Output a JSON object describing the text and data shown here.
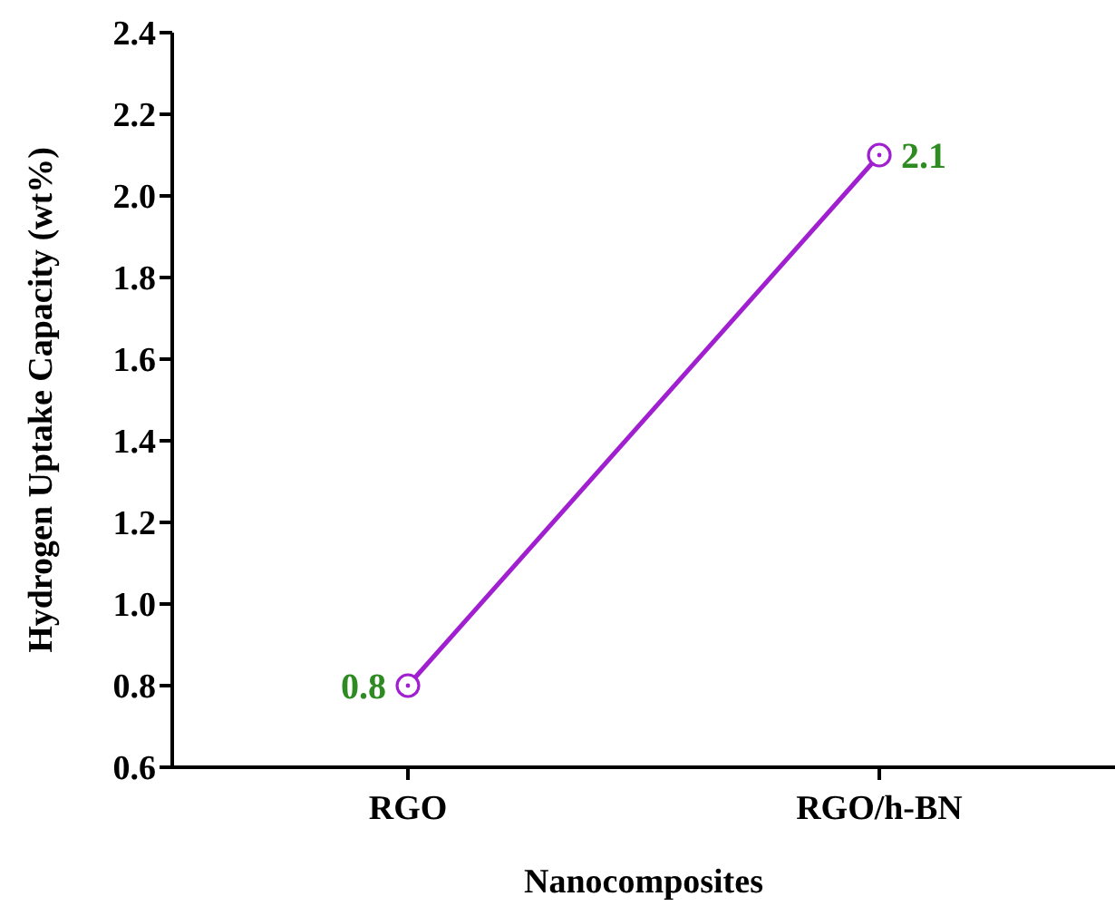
{
  "chart_data": {
    "type": "line",
    "xlabel": "Nanocomposites",
    "ylabel": "Hydrogen Uptake Capacity (wt%)",
    "categories": [
      "RGO",
      "RGO/h-BN"
    ],
    "series": [
      {
        "color": "#a020d0",
        "values": [
          0.8,
          2.1
        ]
      }
    ],
    "ylim": [
      0.6,
      2.4
    ],
    "yticks": [
      0.6,
      0.8,
      {
        "value": 1,
        "label": "1.0"
      },
      1.2,
      1.4,
      1.6,
      1.8,
      {
        "value": 2,
        "label": "2.0"
      },
      2.2,
      2.4
    ],
    "grid": false,
    "legend": false,
    "marker": "circle",
    "line_style": "solid",
    "data_labels": true
  }
}
